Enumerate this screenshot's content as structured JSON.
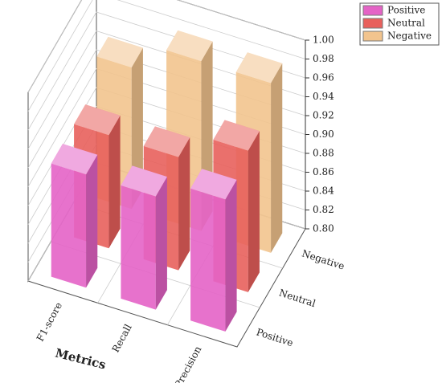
{
  "chart_data": {
    "type": "bar3d",
    "xlabel": "Metrics",
    "categories": [
      "F1-score",
      "Recall",
      "Precision"
    ],
    "series": [
      {
        "name": "Positive",
        "color": "#e463c6",
        "values": [
          0.92,
          0.92,
          0.94
        ]
      },
      {
        "name": "Neutral",
        "color": "#e8605c",
        "values": [
          0.92,
          0.92,
          0.95
        ]
      },
      {
        "name": "Negative",
        "color": "#f2c48e",
        "values": [
          0.95,
          0.98,
          0.98
        ]
      }
    ],
    "ylim": [
      0.8,
      1.0
    ],
    "yticks": [
      {
        "value": 0.8,
        "label": "0.80"
      },
      {
        "value": 0.82,
        "label": "0.82"
      },
      {
        "value": 0.84,
        "label": "0.84"
      },
      {
        "value": 0.86,
        "label": "0.86"
      },
      {
        "value": 0.88,
        "label": "0.88"
      },
      {
        "value": 0.9,
        "label": "0.90"
      },
      {
        "value": 0.92,
        "label": "0.92"
      },
      {
        "value": 0.94,
        "label": "0.94"
      },
      {
        "value": 0.96,
        "label": "0.96"
      },
      {
        "value": 0.98,
        "label": "0.98"
      },
      {
        "value": 1.0,
        "label": "1.00"
      }
    ],
    "grid": true
  }
}
